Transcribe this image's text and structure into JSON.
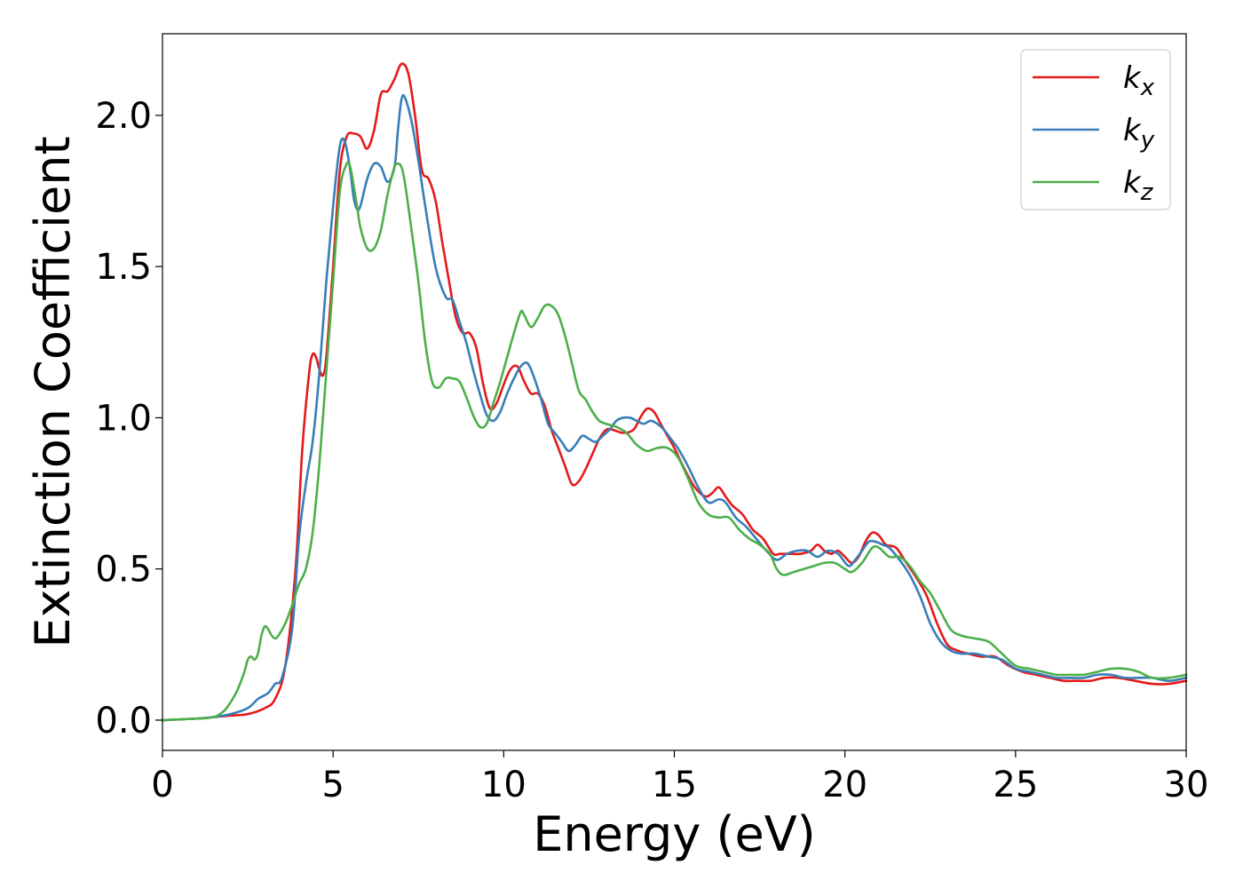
{
  "chart_data": {
    "type": "line",
    "xlabel": "Energy (eV)",
    "ylabel": "Extinction Coefficient",
    "xlim": [
      0,
      30
    ],
    "ylim": [
      -0.1,
      2.27
    ],
    "xticks": [
      0,
      5,
      10,
      15,
      20,
      25,
      30
    ],
    "yticks": [
      0.0,
      0.5,
      1.0,
      1.5,
      2.0
    ],
    "ytick_labels": [
      "0.0",
      "0.5",
      "1.0",
      "1.5",
      "2.0"
    ],
    "grid": false,
    "legend_position": "top-right",
    "series": [
      {
        "name": "k",
        "subscript": "x",
        "color": "#e41a1c",
        "x": [
          0,
          1,
          1.5,
          2,
          2.5,
          3,
          3.3,
          3.6,
          3.9,
          4.1,
          4.3,
          4.4,
          4.5,
          4.6,
          4.7,
          4.8,
          5.0,
          5.2,
          5.4,
          5.6,
          5.8,
          6.0,
          6.2,
          6.4,
          6.6,
          6.8,
          7.0,
          7.2,
          7.4,
          7.6,
          7.8,
          8.0,
          8.2,
          8.4,
          8.6,
          8.8,
          9.0,
          9.2,
          9.4,
          9.6,
          9.8,
          10.0,
          10.2,
          10.4,
          10.6,
          10.8,
          11.0,
          11.2,
          11.4,
          11.6,
          11.8,
          12.0,
          12.2,
          12.4,
          12.6,
          12.8,
          13.0,
          13.2,
          13.5,
          13.8,
          14.0,
          14.2,
          14.4,
          14.6,
          14.8,
          15.0,
          15.3,
          15.6,
          15.9,
          16.1,
          16.3,
          16.5,
          16.7,
          17.0,
          17.3,
          17.6,
          17.9,
          18.1,
          18.4,
          18.7,
          19.0,
          19.2,
          19.4,
          19.6,
          19.8,
          20.0,
          20.2,
          20.4,
          20.6,
          20.8,
          21.0,
          21.2,
          21.5,
          21.8,
          22.1,
          22.4,
          22.7,
          23.0,
          23.3,
          23.6,
          24.0,
          24.4,
          24.8,
          25.2,
          25.6,
          26.0,
          26.4,
          26.8,
          27.2,
          27.6,
          28.0,
          28.5,
          29.0,
          29.5,
          30.0
        ],
        "y": [
          0.0,
          0.005,
          0.01,
          0.015,
          0.02,
          0.04,
          0.07,
          0.18,
          0.5,
          0.9,
          1.15,
          1.21,
          1.2,
          1.16,
          1.14,
          1.2,
          1.5,
          1.82,
          1.93,
          1.94,
          1.93,
          1.89,
          1.95,
          2.07,
          2.08,
          2.12,
          2.17,
          2.14,
          2.0,
          1.82,
          1.79,
          1.72,
          1.58,
          1.45,
          1.33,
          1.28,
          1.28,
          1.23,
          1.11,
          1.03,
          1.05,
          1.11,
          1.16,
          1.17,
          1.12,
          1.08,
          1.08,
          1.04,
          0.96,
          0.9,
          0.84,
          0.78,
          0.79,
          0.83,
          0.88,
          0.93,
          0.96,
          0.96,
          0.95,
          0.96,
          1.0,
          1.03,
          1.02,
          0.98,
          0.94,
          0.9,
          0.83,
          0.77,
          0.74,
          0.75,
          0.77,
          0.74,
          0.71,
          0.68,
          0.63,
          0.6,
          0.55,
          0.55,
          0.55,
          0.55,
          0.56,
          0.58,
          0.56,
          0.55,
          0.56,
          0.54,
          0.52,
          0.54,
          0.59,
          0.62,
          0.61,
          0.58,
          0.57,
          0.52,
          0.47,
          0.41,
          0.32,
          0.25,
          0.23,
          0.22,
          0.21,
          0.21,
          0.18,
          0.16,
          0.15,
          0.14,
          0.13,
          0.13,
          0.13,
          0.14,
          0.14,
          0.13,
          0.12,
          0.12,
          0.13
        ]
      },
      {
        "name": "k",
        "subscript": "y",
        "color": "#377eb8",
        "x": [
          0,
          1,
          1.5,
          2,
          2.5,
          2.8,
          3.1,
          3.3,
          3.5,
          3.8,
          4.0,
          4.2,
          4.4,
          4.6,
          4.8,
          5.0,
          5.2,
          5.35,
          5.5,
          5.6,
          5.7,
          5.8,
          6.0,
          6.2,
          6.4,
          6.6,
          6.8,
          6.9,
          7.0,
          7.1,
          7.3,
          7.5,
          7.7,
          8.0,
          8.3,
          8.5,
          8.7,
          8.9,
          9.1,
          9.3,
          9.5,
          9.7,
          9.9,
          10.1,
          10.3,
          10.5,
          10.7,
          10.9,
          11.1,
          11.3,
          11.5,
          11.7,
          11.9,
          12.1,
          12.3,
          12.5,
          12.7,
          12.9,
          13.1,
          13.3,
          13.5,
          13.7,
          13.9,
          14.1,
          14.3,
          14.5,
          14.7,
          14.9,
          15.1,
          15.4,
          15.7,
          16.0,
          16.3,
          16.5,
          16.8,
          17.1,
          17.4,
          17.7,
          18.0,
          18.3,
          18.6,
          18.9,
          19.2,
          19.5,
          19.8,
          20.1,
          20.3,
          20.5,
          20.7,
          20.9,
          21.1,
          21.3,
          21.6,
          21.9,
          22.2,
          22.5,
          22.8,
          23.1,
          23.4,
          23.8,
          24.2,
          24.6,
          25.0,
          25.4,
          25.8,
          26.2,
          26.6,
          27.0,
          27.4,
          27.8,
          28.2,
          28.6,
          29.0,
          29.5,
          30.0
        ],
        "y": [
          0.0,
          0.005,
          0.01,
          0.02,
          0.04,
          0.07,
          0.09,
          0.12,
          0.14,
          0.3,
          0.6,
          0.78,
          0.92,
          1.15,
          1.45,
          1.7,
          1.9,
          1.91,
          1.82,
          1.73,
          1.69,
          1.7,
          1.79,
          1.84,
          1.83,
          1.78,
          1.83,
          1.95,
          2.05,
          2.06,
          1.98,
          1.85,
          1.7,
          1.5,
          1.4,
          1.39,
          1.32,
          1.25,
          1.16,
          1.08,
          1.01,
          0.99,
          1.02,
          1.08,
          1.13,
          1.17,
          1.18,
          1.13,
          1.06,
          0.98,
          0.95,
          0.92,
          0.89,
          0.91,
          0.94,
          0.93,
          0.92,
          0.94,
          0.96,
          0.99,
          1.0,
          1.0,
          0.99,
          0.98,
          0.99,
          0.98,
          0.96,
          0.93,
          0.9,
          0.84,
          0.77,
          0.72,
          0.73,
          0.72,
          0.67,
          0.64,
          0.6,
          0.56,
          0.53,
          0.55,
          0.56,
          0.56,
          0.54,
          0.56,
          0.55,
          0.51,
          0.53,
          0.56,
          0.59,
          0.59,
          0.58,
          0.57,
          0.53,
          0.48,
          0.41,
          0.32,
          0.26,
          0.23,
          0.22,
          0.22,
          0.21,
          0.2,
          0.17,
          0.16,
          0.15,
          0.14,
          0.14,
          0.14,
          0.15,
          0.15,
          0.14,
          0.14,
          0.14,
          0.13,
          0.14
        ]
      },
      {
        "name": "k",
        "subscript": "z",
        "color": "#4daf4a",
        "x": [
          0,
          1,
          1.5,
          1.8,
          2.0,
          2.2,
          2.4,
          2.5,
          2.6,
          2.7,
          2.8,
          2.9,
          3.0,
          3.1,
          3.2,
          3.3,
          3.4,
          3.6,
          3.8,
          4.0,
          4.2,
          4.4,
          4.6,
          4.8,
          5.0,
          5.2,
          5.4,
          5.5,
          5.6,
          5.7,
          5.8,
          6.0,
          6.2,
          6.4,
          6.6,
          6.8,
          6.9,
          7.0,
          7.1,
          7.3,
          7.5,
          7.7,
          7.9,
          8.1,
          8.3,
          8.5,
          8.7,
          8.9,
          9.1,
          9.3,
          9.5,
          9.7,
          9.9,
          10.1,
          10.3,
          10.5,
          10.6,
          10.8,
          11.0,
          11.2,
          11.4,
          11.6,
          11.8,
          12.0,
          12.2,
          12.4,
          12.6,
          12.8,
          13.0,
          13.3,
          13.6,
          13.9,
          14.2,
          14.5,
          14.8,
          15.1,
          15.4,
          15.7,
          16.0,
          16.3,
          16.6,
          16.9,
          17.2,
          17.5,
          17.8,
          18.0,
          18.2,
          18.5,
          18.8,
          19.1,
          19.4,
          19.7,
          20.0,
          20.2,
          20.5,
          20.8,
          21.0,
          21.3,
          21.6,
          21.9,
          22.2,
          22.5,
          22.8,
          23.1,
          23.4,
          23.8,
          24.2,
          24.6,
          25.0,
          25.4,
          25.8,
          26.2,
          26.6,
          27.0,
          27.4,
          27.8,
          28.2,
          28.6,
          29.0,
          29.5,
          30.0
        ],
        "y": [
          0.0,
          0.005,
          0.01,
          0.03,
          0.06,
          0.1,
          0.16,
          0.2,
          0.21,
          0.2,
          0.22,
          0.28,
          0.31,
          0.3,
          0.28,
          0.27,
          0.28,
          0.32,
          0.38,
          0.45,
          0.5,
          0.62,
          0.85,
          1.15,
          1.45,
          1.75,
          1.84,
          1.83,
          1.77,
          1.7,
          1.63,
          1.56,
          1.56,
          1.62,
          1.74,
          1.83,
          1.84,
          1.83,
          1.78,
          1.62,
          1.45,
          1.25,
          1.12,
          1.1,
          1.13,
          1.13,
          1.12,
          1.07,
          1.01,
          0.97,
          0.98,
          1.05,
          1.12,
          1.2,
          1.28,
          1.35,
          1.34,
          1.3,
          1.33,
          1.37,
          1.37,
          1.34,
          1.27,
          1.18,
          1.09,
          1.06,
          1.02,
          0.99,
          0.98,
          0.97,
          0.95,
          0.91,
          0.89,
          0.9,
          0.9,
          0.87,
          0.8,
          0.72,
          0.68,
          0.67,
          0.67,
          0.63,
          0.6,
          0.58,
          0.55,
          0.5,
          0.48,
          0.49,
          0.5,
          0.51,
          0.52,
          0.52,
          0.5,
          0.49,
          0.52,
          0.57,
          0.57,
          0.54,
          0.54,
          0.51,
          0.46,
          0.42,
          0.36,
          0.3,
          0.28,
          0.27,
          0.26,
          0.22,
          0.18,
          0.17,
          0.16,
          0.15,
          0.15,
          0.15,
          0.16,
          0.17,
          0.17,
          0.16,
          0.14,
          0.14,
          0.15
        ]
      }
    ]
  }
}
